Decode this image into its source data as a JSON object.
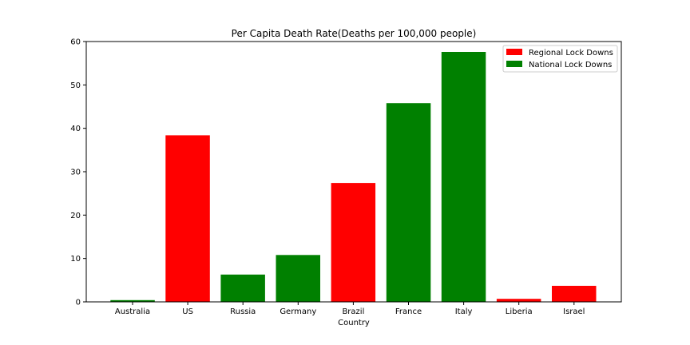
{
  "chart_data": {
    "type": "bar",
    "title": "Per Capita Death Rate(Deaths per 100,000 people)",
    "xlabel": "Country",
    "ylabel": "",
    "ylim": [
      0,
      60
    ],
    "yticks": [
      0,
      10,
      20,
      30,
      40,
      50,
      60
    ],
    "grid": false,
    "legend_position": "top-right",
    "categories": [
      "Australia",
      "US",
      "Russia",
      "Germany",
      "Brazil",
      "France",
      "Italy",
      "Liberia",
      "Israel"
    ],
    "values": [
      0.4,
      38.4,
      6.3,
      10.8,
      27.4,
      45.8,
      57.6,
      0.7,
      3.7
    ],
    "bar_groups": [
      "National Lock Downs",
      "Regional Lock Downs",
      "National Lock Downs",
      "National Lock Downs",
      "Regional Lock Downs",
      "National Lock Downs",
      "National Lock Downs",
      "Regional Lock Downs",
      "Regional Lock Downs"
    ],
    "legend": [
      {
        "name": "Regional Lock Downs",
        "color": "#ff0000"
      },
      {
        "name": "National Lock Downs",
        "color": "#008000"
      }
    ]
  }
}
